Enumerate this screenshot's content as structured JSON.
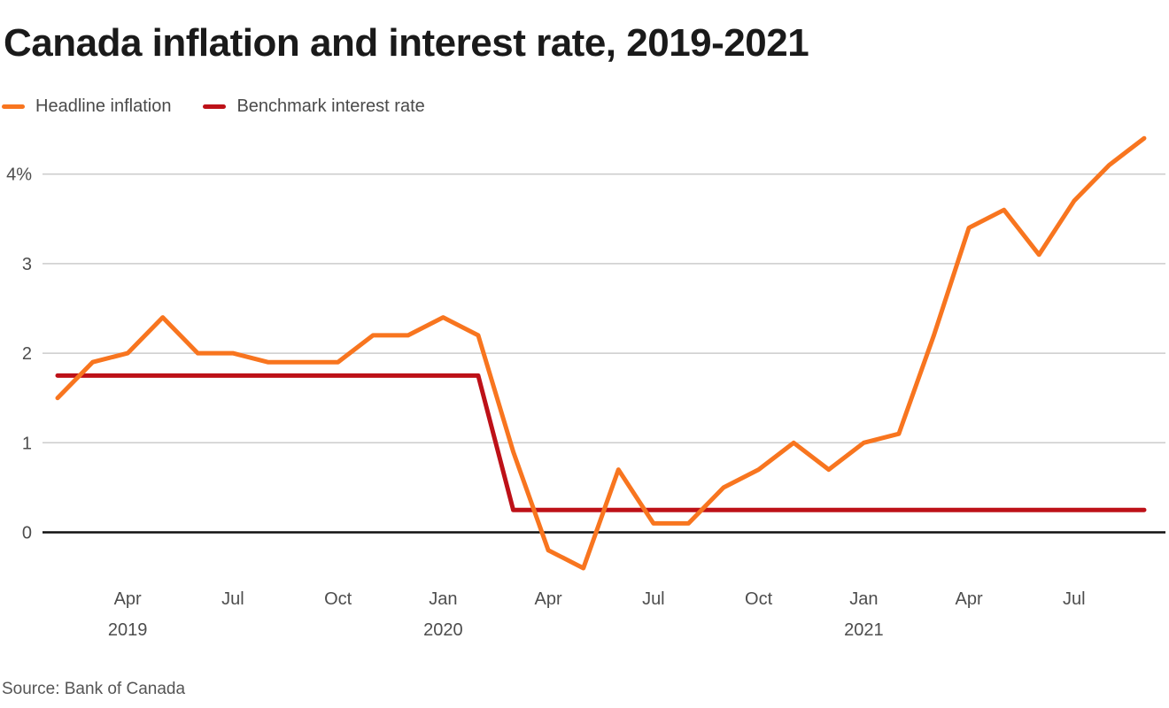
{
  "title": "Canada inflation and interest rate, 2019-2021",
  "source": "Source: Bank of Canada",
  "legend": [
    {
      "label": "Headline inflation",
      "color": "#F8751F"
    },
    {
      "label": "Benchmark interest rate",
      "color": "#BD1118"
    }
  ],
  "colors": {
    "grid": "#cccccc",
    "zero_axis": "#111111",
    "tick_text": "#4d4d4d"
  },
  "chart_data": {
    "type": "line",
    "x": [
      "Feb 2019",
      "Mar 2019",
      "Apr 2019",
      "May 2019",
      "Jun 2019",
      "Jul 2019",
      "Aug 2019",
      "Sep 2019",
      "Oct 2019",
      "Nov 2019",
      "Dec 2019",
      "Jan 2020",
      "Feb 2020",
      "Mar 2020",
      "Apr 2020",
      "May 2020",
      "Jun 2020",
      "Jul 2020",
      "Aug 2020",
      "Sep 2020",
      "Oct 2020",
      "Nov 2020",
      "Dec 2020",
      "Jan 2021",
      "Feb 2021",
      "Mar 2021",
      "Apr 2021",
      "May 2021",
      "Jun 2021",
      "Jul 2021",
      "Aug 2021",
      "Sep 2021"
    ],
    "series": [
      {
        "name": "Headline inflation",
        "color": "#F8751F",
        "values": [
          1.5,
          1.9,
          2.0,
          2.4,
          2.0,
          2.0,
          1.9,
          1.9,
          1.9,
          2.2,
          2.2,
          2.4,
          2.2,
          0.9,
          -0.2,
          -0.4,
          0.7,
          0.1,
          0.1,
          0.5,
          0.7,
          1.0,
          0.7,
          1.0,
          1.1,
          2.2,
          3.4,
          3.6,
          3.1,
          3.7,
          4.1,
          4.4
        ]
      },
      {
        "name": "Benchmark interest rate",
        "color": "#BD1118",
        "values": [
          1.75,
          1.75,
          1.75,
          1.75,
          1.75,
          1.75,
          1.75,
          1.75,
          1.75,
          1.75,
          1.75,
          1.75,
          1.75,
          0.25,
          0.25,
          0.25,
          0.25,
          0.25,
          0.25,
          0.25,
          0.25,
          0.25,
          0.25,
          0.25,
          0.25,
          0.25,
          0.25,
          0.25,
          0.25,
          0.25,
          0.25,
          0.25
        ]
      }
    ],
    "ylim": [
      -0.6,
      4.6
    ],
    "grid": true,
    "legend_position": "top-left",
    "y_ticks": [
      {
        "label": "4%",
        "value": 4
      },
      {
        "label": "3",
        "value": 3
      },
      {
        "label": "2",
        "value": 2
      },
      {
        "label": "1",
        "value": 1
      },
      {
        "label": "0",
        "value": 0
      }
    ],
    "x_ticks": [
      {
        "label": "Apr",
        "year": "2019",
        "index": 2
      },
      {
        "label": "Jul",
        "index": 5
      },
      {
        "label": "Oct",
        "index": 8
      },
      {
        "label": "Jan",
        "year": "2020",
        "index": 11
      },
      {
        "label": "Apr",
        "index": 14
      },
      {
        "label": "Jul",
        "index": 17
      },
      {
        "label": "Oct",
        "index": 20
      },
      {
        "label": "Jan",
        "year": "2021",
        "index": 23
      },
      {
        "label": "Apr",
        "index": 26
      },
      {
        "label": "Jul",
        "index": 29
      }
    ]
  }
}
